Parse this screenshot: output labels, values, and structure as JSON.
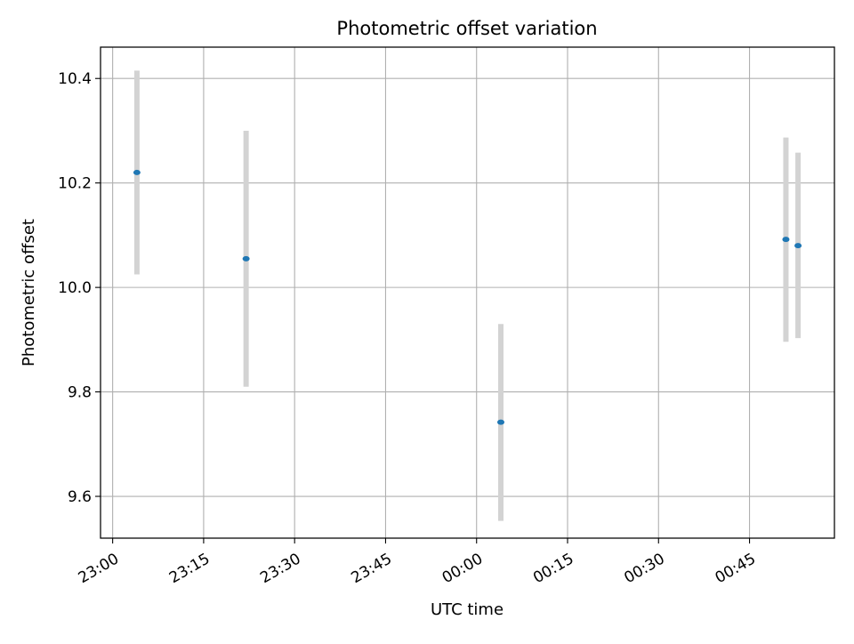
{
  "chart_data": {
    "type": "scatter",
    "title": "Photometric offset variation",
    "xlabel": "UTC time",
    "ylabel": "Photometric offset",
    "x_axis_kind": "time",
    "xlim": [
      "22:58",
      "00:59"
    ],
    "ylim": [
      9.52,
      10.46
    ],
    "x_ticks": [
      "23:00",
      "23:15",
      "23:30",
      "23:45",
      "00:00",
      "00:15",
      "00:30",
      "00:45"
    ],
    "y_ticks": [
      9.6,
      9.8,
      10.0,
      10.2,
      10.4
    ],
    "grid": true,
    "series": [
      {
        "points": [
          {
            "x": "23:04",
            "y": 10.22,
            "err_low": 10.025,
            "err_high": 10.415
          },
          {
            "x": "23:22",
            "y": 10.055,
            "err_low": 9.81,
            "err_high": 10.3
          },
          {
            "x": "00:04",
            "y": 9.742,
            "err_low": 9.553,
            "err_high": 9.93
          },
          {
            "x": "00:51",
            "y": 10.092,
            "err_low": 9.896,
            "err_high": 10.287
          },
          {
            "x": "00:53",
            "y": 10.08,
            "err_low": 9.903,
            "err_high": 10.258
          }
        ]
      }
    ],
    "colors": {
      "marker": "#1f77b4",
      "errorbar": "#d3d3d3",
      "grid": "#b0b0b0",
      "axes": "#000000"
    }
  }
}
